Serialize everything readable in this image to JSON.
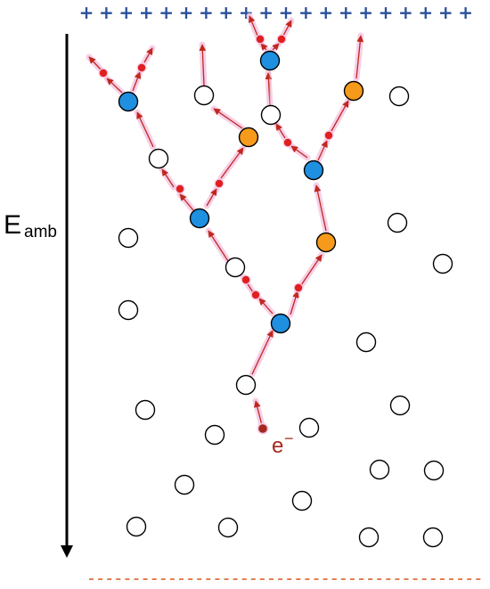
{
  "colors": {
    "ion_blue": "#1f8fe0",
    "ion_orange": "#f59a1a",
    "atom_white": "#ffffff",
    "electron_red": "#e02020",
    "electron_brown": "#a5281e",
    "arrow_red": "#c0281e",
    "glow_pink": "#f6c7e4",
    "top_plus": "#2a5199",
    "bottom_dash": "#d9602a"
  },
  "top_electrode": {
    "symbol": "+",
    "count": 20
  },
  "bottom_electrode": {
    "symbol": "-",
    "count": 44
  },
  "field": {
    "label_main": "E",
    "label_sub": "amb"
  },
  "seed_electron": {
    "label": "e",
    "superscript": "−"
  }
}
